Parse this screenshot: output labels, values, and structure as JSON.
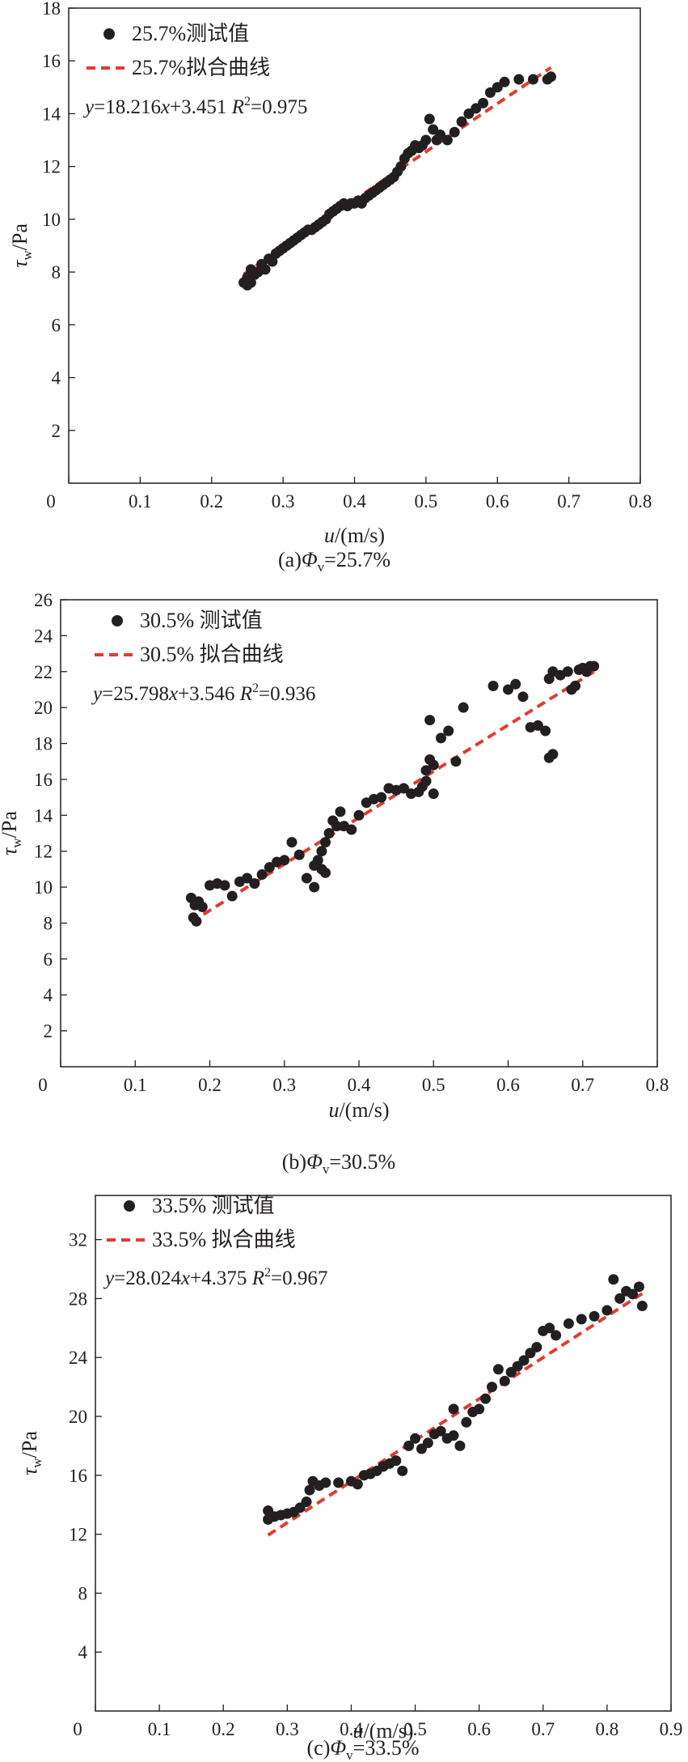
{
  "chart_data": [
    {
      "type": "scatter",
      "xlim": [
        0,
        0.8
      ],
      "ylim": [
        0,
        18
      ],
      "xticks": [
        "0",
        "0.1",
        "0.2",
        "0.3",
        "0.4",
        "0.5",
        "0.6",
        "0.7",
        "0.8"
      ],
      "yticks": [
        "2",
        "4",
        "6",
        "8",
        "10",
        "12",
        "14",
        "16",
        "18"
      ],
      "xlabel": {
        "var": "u",
        "unit": "/(m/s)"
      },
      "ylabel": {
        "var": "τ",
        "sub": "w",
        "unit": "/Pa"
      },
      "legend_position": "top-left",
      "caption": {
        "prefix": "(a)",
        "var": "Φ",
        "sub": "v",
        "value": "=25.7%"
      },
      "equation": {
        "y": "y",
        "rhs1": "=18.216",
        "x": "x",
        "rhs2": "+3.451",
        "r": "R",
        "exp": "2",
        "rval": "=0.975"
      },
      "series": [
        {
          "name": "25.7%测试值",
          "color": "#231f20",
          "points": [
            [
              0.245,
              7.6
            ],
            [
              0.25,
              7.5
            ],
            [
              0.255,
              7.6
            ],
            [
              0.25,
              7.8
            ],
            [
              0.26,
              7.9
            ],
            [
              0.255,
              8.1
            ],
            [
              0.265,
              8.0
            ],
            [
              0.27,
              8.3
            ],
            [
              0.275,
              8.1
            ],
            [
              0.28,
              8.5
            ],
            [
              0.285,
              8.4
            ],
            [
              0.29,
              8.7
            ],
            [
              0.295,
              8.8
            ],
            [
              0.3,
              8.9
            ],
            [
              0.305,
              9.0
            ],
            [
              0.31,
              9.1
            ],
            [
              0.315,
              9.2
            ],
            [
              0.32,
              9.3
            ],
            [
              0.325,
              9.4
            ],
            [
              0.33,
              9.5
            ],
            [
              0.335,
              9.6
            ],
            [
              0.34,
              9.6
            ],
            [
              0.345,
              9.7
            ],
            [
              0.35,
              9.8
            ],
            [
              0.355,
              9.9
            ],
            [
              0.36,
              10.0
            ],
            [
              0.365,
              10.2
            ],
            [
              0.37,
              10.3
            ],
            [
              0.375,
              10.4
            ],
            [
              0.38,
              10.5
            ],
            [
              0.385,
              10.6
            ],
            [
              0.39,
              10.5
            ],
            [
              0.395,
              10.6
            ],
            [
              0.4,
              10.6
            ],
            [
              0.405,
              10.7
            ],
            [
              0.41,
              10.6
            ],
            [
              0.415,
              10.8
            ],
            [
              0.42,
              10.9
            ],
            [
              0.425,
              11.0
            ],
            [
              0.43,
              11.1
            ],
            [
              0.435,
              11.2
            ],
            [
              0.44,
              11.3
            ],
            [
              0.445,
              11.4
            ],
            [
              0.45,
              11.5
            ],
            [
              0.455,
              11.6
            ],
            [
              0.46,
              11.8
            ],
            [
              0.465,
              12.0
            ],
            [
              0.47,
              12.3
            ],
            [
              0.475,
              12.5
            ],
            [
              0.48,
              12.6
            ],
            [
              0.485,
              12.8
            ],
            [
              0.49,
              12.7
            ],
            [
              0.495,
              12.8
            ],
            [
              0.5,
              13.0
            ],
            [
              0.505,
              13.8
            ],
            [
              0.51,
              13.4
            ],
            [
              0.515,
              13.0
            ],
            [
              0.52,
              13.2
            ],
            [
              0.53,
              13.0
            ],
            [
              0.54,
              13.3
            ],
            [
              0.55,
              13.7
            ],
            [
              0.56,
              14.0
            ],
            [
              0.57,
              14.2
            ],
            [
              0.58,
              14.4
            ],
            [
              0.59,
              14.8
            ],
            [
              0.6,
              15.0
            ],
            [
              0.61,
              15.2
            ],
            [
              0.63,
              15.3
            ],
            [
              0.65,
              15.3
            ],
            [
              0.67,
              15.3
            ],
            [
              0.675,
              15.4
            ]
          ]
        },
        {
          "name": "25.7%拟合曲线",
          "color": "#e03c31",
          "line": {
            "slope": 18.216,
            "intercept": 3.451,
            "x": [
              0.245,
              0.675
            ]
          }
        }
      ]
    },
    {
      "type": "scatter",
      "xlim": [
        0,
        0.8
      ],
      "ylim": [
        0,
        26
      ],
      "xticks": [
        "0",
        "0.1",
        "0.2",
        "0.3",
        "0.4",
        "0.5",
        "0.6",
        "0.7",
        "0.8"
      ],
      "yticks": [
        "2",
        "4",
        "6",
        "8",
        "10",
        "12",
        "14",
        "16",
        "18",
        "20",
        "22",
        "24",
        "26"
      ],
      "xlabel": {
        "var": "u",
        "unit": "/(m/s)"
      },
      "ylabel": {
        "var": "τ",
        "sub": "w",
        "unit": "/Pa"
      },
      "legend_position": "top-left",
      "caption": {
        "prefix": "(b)",
        "var": "Φ",
        "sub": "v",
        "value": "=30.5%"
      },
      "equation": {
        "y": "y",
        "rhs1": "=25.798",
        "x": "x",
        "rhs2": "+3.546",
        "r": "R",
        "exp": "2",
        "rval": "=0.936"
      },
      "series": [
        {
          "name": "30.5% 测试值",
          "color": "#231f20",
          "points": [
            [
              0.175,
              9.4
            ],
            [
              0.18,
              9.0
            ],
            [
              0.178,
              8.3
            ],
            [
              0.182,
              8.1
            ],
            [
              0.185,
              9.2
            ],
            [
              0.19,
              8.9
            ],
            [
              0.2,
              10.1
            ],
            [
              0.21,
              10.2
            ],
            [
              0.22,
              10.1
            ],
            [
              0.23,
              9.5
            ],
            [
              0.24,
              10.3
            ],
            [
              0.25,
              10.5
            ],
            [
              0.26,
              10.2
            ],
            [
              0.27,
              10.7
            ],
            [
              0.28,
              11.1
            ],
            [
              0.29,
              11.4
            ],
            [
              0.3,
              11.5
            ],
            [
              0.31,
              12.5
            ],
            [
              0.32,
              11.8
            ],
            [
              0.33,
              10.5
            ],
            [
              0.34,
              10.0
            ],
            [
              0.34,
              11.2
            ],
            [
              0.345,
              11.5
            ],
            [
              0.35,
              12.0
            ],
            [
              0.35,
              11.0
            ],
            [
              0.355,
              10.8
            ],
            [
              0.355,
              12.5
            ],
            [
              0.36,
              13.0
            ],
            [
              0.365,
              13.7
            ],
            [
              0.37,
              13.4
            ],
            [
              0.375,
              14.2
            ],
            [
              0.38,
              13.4
            ],
            [
              0.39,
              13.2
            ],
            [
              0.4,
              14.0
            ],
            [
              0.41,
              14.7
            ],
            [
              0.42,
              14.9
            ],
            [
              0.43,
              15.0
            ],
            [
              0.44,
              15.5
            ],
            [
              0.45,
              15.4
            ],
            [
              0.46,
              15.5
            ],
            [
              0.47,
              15.2
            ],
            [
              0.48,
              15.3
            ],
            [
              0.485,
              15.6
            ],
            [
              0.49,
              15.9
            ],
            [
              0.49,
              16.5
            ],
            [
              0.495,
              17.1
            ],
            [
              0.495,
              19.3
            ],
            [
              0.5,
              15.2
            ],
            [
              0.5,
              16.8
            ],
            [
              0.51,
              18.3
            ],
            [
              0.52,
              18.7
            ],
            [
              0.53,
              17.0
            ],
            [
              0.54,
              20.0
            ],
            [
              0.58,
              21.2
            ],
            [
              0.6,
              21.0
            ],
            [
              0.61,
              21.3
            ],
            [
              0.62,
              20.6
            ],
            [
              0.63,
              18.9
            ],
            [
              0.64,
              19.0
            ],
            [
              0.65,
              18.7
            ],
            [
              0.655,
              17.2
            ],
            [
              0.66,
              17.4
            ],
            [
              0.655,
              21.6
            ],
            [
              0.66,
              22.0
            ],
            [
              0.67,
              21.8
            ],
            [
              0.68,
              22.0
            ],
            [
              0.685,
              21.0
            ],
            [
              0.69,
              21.2
            ],
            [
              0.695,
              22.1
            ],
            [
              0.7,
              22.2
            ],
            [
              0.705,
              22.0
            ],
            [
              0.71,
              22.3
            ],
            [
              0.715,
              22.3
            ]
          ]
        },
        {
          "name": "30.5% 拟合曲线",
          "color": "#e03c31",
          "line": {
            "slope": 25.798,
            "intercept": 3.546,
            "x": [
              0.175,
              0.715
            ]
          }
        }
      ]
    },
    {
      "type": "scatter",
      "xlim": [
        0,
        0.9
      ],
      "ylim": [
        0,
        35
      ],
      "xticks": [
        "0",
        "0.1",
        "0.2",
        "0.3",
        "0.4",
        "0.5",
        "0.6",
        "0.7",
        "0.8",
        "0.9"
      ],
      "yticks": [
        "4",
        "8",
        "12",
        "16",
        "20",
        "24",
        "28",
        "32"
      ],
      "xlabel": {
        "var": "u",
        "unit": "/(m/s)"
      },
      "ylabel": {
        "var": "τ",
        "sub": "w",
        "unit": "/Pa"
      },
      "legend_position": "top-left",
      "caption": {
        "prefix": "(c)",
        "var": "Φ",
        "sub": "v",
        "value": "=33.5%"
      },
      "equation": {
        "y": "y",
        "rhs1": "=28.024",
        "x": "x",
        "rhs2": "+4.375",
        "r": "R",
        "exp": "2",
        "rval": "=0.967"
      },
      "series": [
        {
          "name": "33.5% 测试值",
          "color": "#231f20",
          "points": [
            [
              0.27,
              13.0
            ],
            [
              0.27,
              13.6
            ],
            [
              0.28,
              13.2
            ],
            [
              0.29,
              13.3
            ],
            [
              0.3,
              13.4
            ],
            [
              0.31,
              13.5
            ],
            [
              0.32,
              13.8
            ],
            [
              0.33,
              14.2
            ],
            [
              0.335,
              15.0
            ],
            [
              0.34,
              15.6
            ],
            [
              0.35,
              15.3
            ],
            [
              0.36,
              15.5
            ],
            [
              0.38,
              15.5
            ],
            [
              0.4,
              15.6
            ],
            [
              0.41,
              15.4
            ],
            [
              0.42,
              16.0
            ],
            [
              0.43,
              16.1
            ],
            [
              0.44,
              16.3
            ],
            [
              0.45,
              16.6
            ],
            [
              0.46,
              16.8
            ],
            [
              0.47,
              17.0
            ],
            [
              0.48,
              16.3
            ],
            [
              0.49,
              18.0
            ],
            [
              0.5,
              18.5
            ],
            [
              0.51,
              17.8
            ],
            [
              0.52,
              18.2
            ],
            [
              0.53,
              18.8
            ],
            [
              0.54,
              19.0
            ],
            [
              0.55,
              18.5
            ],
            [
              0.56,
              18.7
            ],
            [
              0.56,
              20.5
            ],
            [
              0.57,
              18.0
            ],
            [
              0.58,
              19.6
            ],
            [
              0.59,
              20.3
            ],
            [
              0.6,
              20.5
            ],
            [
              0.61,
              21.2
            ],
            [
              0.62,
              22.0
            ],
            [
              0.63,
              23.2
            ],
            [
              0.64,
              22.4
            ],
            [
              0.65,
              23.0
            ],
            [
              0.66,
              23.4
            ],
            [
              0.67,
              23.8
            ],
            [
              0.68,
              24.3
            ],
            [
              0.69,
              24.7
            ],
            [
              0.7,
              25.8
            ],
            [
              0.71,
              26.0
            ],
            [
              0.72,
              25.5
            ],
            [
              0.74,
              26.3
            ],
            [
              0.76,
              26.6
            ],
            [
              0.78,
              26.8
            ],
            [
              0.8,
              27.2
            ],
            [
              0.81,
              29.3
            ],
            [
              0.82,
              28.0
            ],
            [
              0.83,
              28.5
            ],
            [
              0.84,
              28.3
            ],
            [
              0.85,
              28.8
            ],
            [
              0.855,
              27.5
            ]
          ]
        },
        {
          "name": "33.5% 拟合曲线",
          "color": "#e03c31",
          "line": {
            "slope": 28.024,
            "intercept": 4.375,
            "x": [
              0.27,
              0.855
            ]
          }
        }
      ]
    }
  ]
}
